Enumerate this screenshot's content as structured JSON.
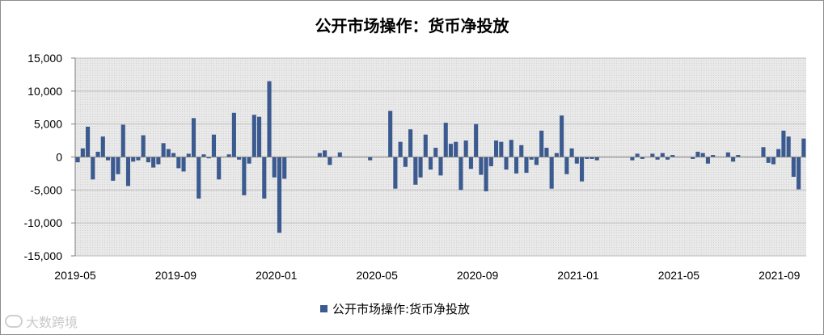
{
  "chart_data": {
    "type": "bar",
    "title": "公开市场操作：货币净投放",
    "xlabel": "",
    "ylabel": "",
    "ylim": [
      -15000,
      15000
    ],
    "yticks": [
      15000,
      10000,
      5000,
      0,
      -5000,
      -10000,
      -15000
    ],
    "ytick_labels": [
      "15,000",
      "10,000",
      "5,000",
      "0",
      "-5,000",
      "-10,000",
      "-15,000"
    ],
    "xtick_labels": [
      "2019-05",
      "2019-09",
      "2020-01",
      "2020-05",
      "2020-09",
      "2021-01",
      "2021-05",
      "2021-09"
    ],
    "grid": true,
    "legend_position": "bottom",
    "series": [
      {
        "name": "公开市场操作:货币净投放",
        "color": "#3b5a8f",
        "values": [
          -800,
          1300,
          4600,
          -3400,
          800,
          3100,
          -500,
          -3600,
          -2600,
          4900,
          -4400,
          -700,
          -500,
          3300,
          -800,
          -1600,
          -1100,
          2100,
          1200,
          600,
          -1700,
          -2200,
          500,
          5900,
          -6300,
          400,
          -200,
          3400,
          -3400,
          0,
          400,
          6700,
          -400,
          -5800,
          -1000,
          6400,
          6100,
          -6300,
          11500,
          -3100,
          -11500,
          -3300,
          0,
          0,
          0,
          0,
          0,
          0,
          600,
          1000,
          -1200,
          0,
          700,
          0,
          0,
          0,
          0,
          0,
          -500,
          0,
          0,
          0,
          7000,
          -4800,
          2300,
          -1500,
          4200,
          -4200,
          -3100,
          3400,
          -1900,
          1400,
          -2800,
          5200,
          2000,
          2300,
          -5000,
          2500,
          -1800,
          5000,
          -2700,
          -5200,
          -1400,
          2500,
          2300,
          -1900,
          2600,
          -2500,
          1800,
          -2400,
          -400,
          -1200,
          4000,
          1400,
          -4800,
          600,
          6300,
          -2600,
          1300,
          -1000,
          -3700,
          -300,
          -300,
          -500,
          0,
          0,
          0,
          0,
          0,
          0,
          -500,
          500,
          -300,
          0,
          500,
          -400,
          600,
          -400,
          300,
          0,
          0,
          0,
          -300,
          800,
          600,
          -1000,
          300,
          0,
          0,
          700,
          -700,
          300,
          0,
          0,
          0,
          0,
          1500,
          -900,
          -1100,
          1200,
          4000,
          3100,
          -3000,
          -4900,
          2800
        ]
      }
    ]
  },
  "watermark": "大数跨境"
}
